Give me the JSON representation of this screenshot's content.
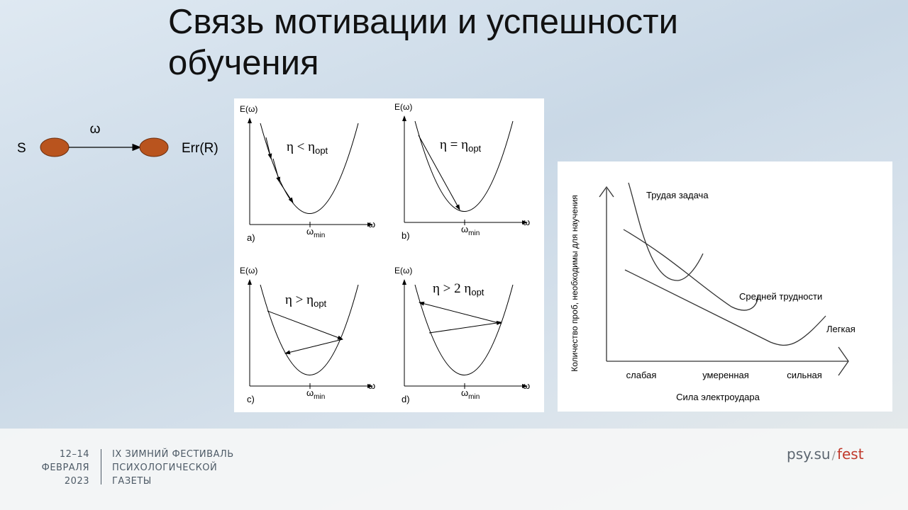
{
  "title": "Связь мотивации и успешности обучения",
  "scheme": {
    "source": "S",
    "edge": "ω",
    "target": "Err(R)"
  },
  "panels": [
    {
      "y_label": "E(ω)",
      "x_label": "ω",
      "x_mark": {
        "main": "ω",
        "sub": "min"
      },
      "letter": "a)",
      "condition": {
        "main": "η < η",
        "sub": "opt"
      }
    },
    {
      "y_label": "E(ω)",
      "x_label": "ω",
      "x_mark": {
        "main": "ω",
        "sub": "min"
      },
      "letter": "b)",
      "condition": {
        "main": "η = η",
        "sub": "opt"
      }
    },
    {
      "y_label": "E(ω)",
      "x_label": "ω",
      "x_mark": {
        "main": "ω",
        "sub": "min"
      },
      "letter": "c)",
      "condition": {
        "main": "η > η",
        "sub": "opt"
      }
    },
    {
      "y_label": "E(ω)",
      "x_label": "ω",
      "x_mark": {
        "main": "ω",
        "sub": "min"
      },
      "letter": "d)",
      "condition": {
        "main": "η > 2 η",
        "sub": "opt"
      }
    }
  ],
  "yerkes": {
    "y_label": "Количество проб, необходимы для научения",
    "x_label": "Сила электроудара",
    "x_categories": [
      "слабая",
      "умеренная",
      "сильная"
    ],
    "curves": [
      "Трудая задача",
      "Средней трудности",
      "Легкая"
    ]
  },
  "footer": {
    "dates": [
      "12–14",
      "ФЕВРАЛЯ",
      "2023"
    ],
    "festival": [
      "IX ЗИМНИЙ ФЕСТИВАЛЬ",
      "ПСИХОЛОГИЧЕСКОЙ",
      "ГАЗЕТЫ"
    ],
    "site": "psy.su",
    "separator": "/",
    "section": "fest"
  }
}
